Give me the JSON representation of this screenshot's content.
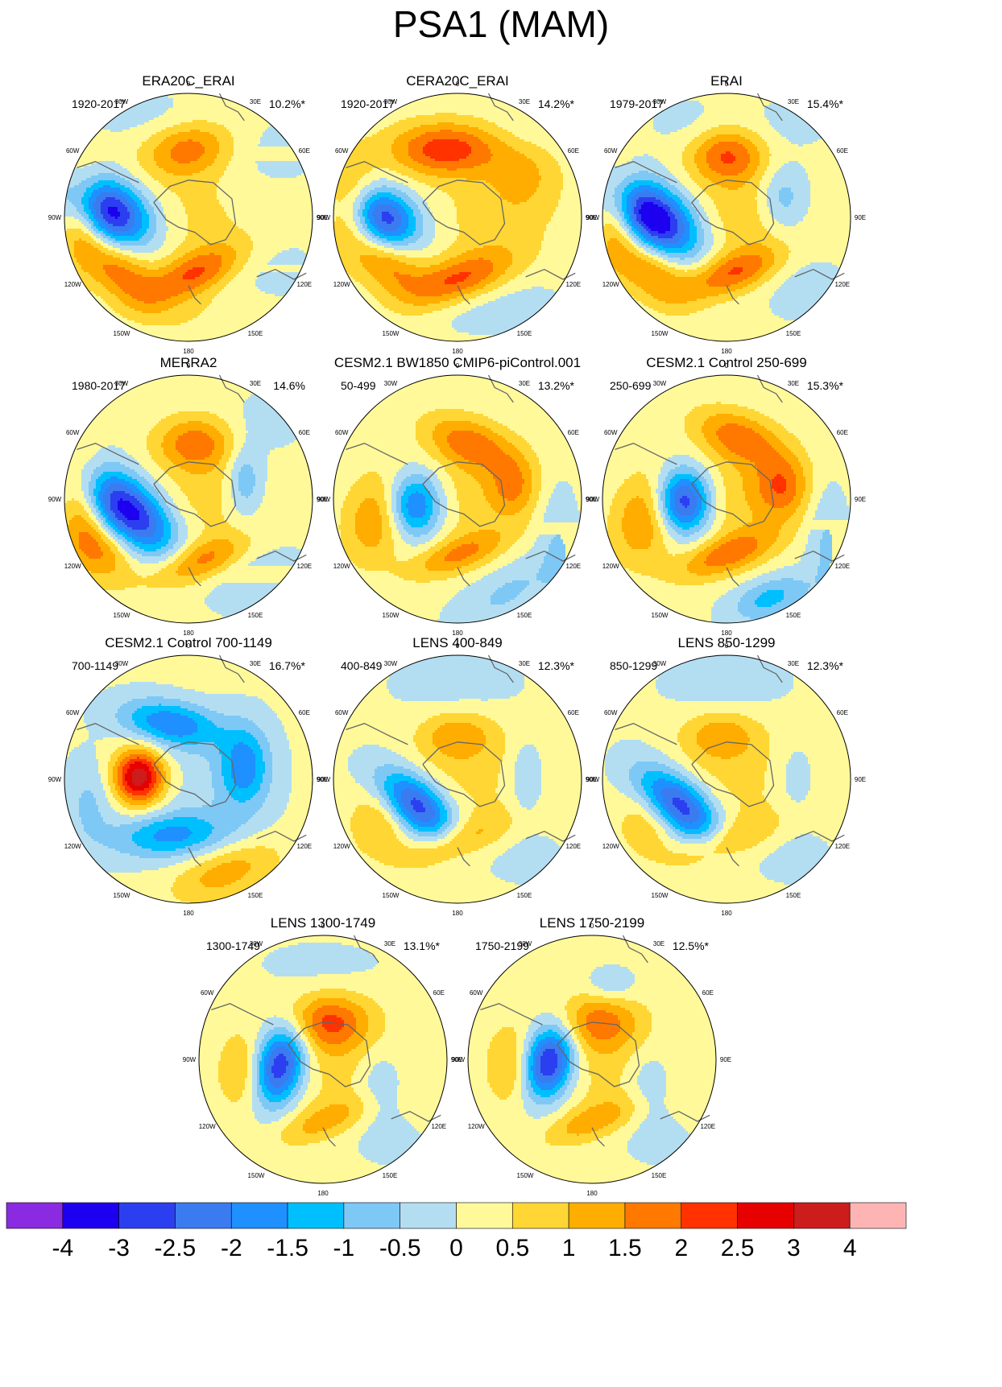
{
  "title": "PSA1 (MAM)",
  "palette": [
    "#8a2be2",
    "#1e00f0",
    "#2c3ff0",
    "#3a7bf0",
    "#1e90ff",
    "#00bfff",
    "#7ec8f5",
    "#b3def2",
    "#fff99a",
    "#ffd633",
    "#ffad00",
    "#ff7800",
    "#ff3200",
    "#e60000",
    "#cc1c1c",
    "#ffb4b4"
  ],
  "colorbar_labels": [
    "-4",
    "-3",
    "-2.5",
    "-2",
    "-1.5",
    "-1",
    "-0.5",
    "0",
    "0.5",
    "1",
    "1.5",
    "2",
    "2.5",
    "3",
    "4"
  ],
  "grid_labels": [
    "0",
    "30E",
    "60E",
    "90E",
    "120E",
    "150E",
    "180",
    "150W",
    "120W",
    "90W",
    "60W",
    "30W"
  ],
  "panels": [
    {
      "title": "ERA20C_ERAI",
      "period": "1920-2017",
      "pct": "10.2%*",
      "blobs": [
        [
          -0.65,
          0.05,
          0.36,
          0.24,
          -30,
          -3.6
        ],
        [
          0.05,
          -0.45,
          0.42,
          0.17,
          25,
          1.8
        ],
        [
          -0.55,
          -0.45,
          0.38,
          0.2,
          -40,
          1.6
        ],
        [
          -0.85,
          0.02,
          0.18,
          0.4,
          0,
          1.4
        ],
        [
          0.0,
          0.55,
          0.36,
          0.22,
          10,
          1.6
        ],
        [
          0.1,
          0.0,
          0.5,
          0.5,
          0,
          0.5
        ],
        [
          0.55,
          0.5,
          0.45,
          0.3,
          0,
          -0.3
        ],
        [
          0.6,
          -0.4,
          0.4,
          0.3,
          0,
          -0.3
        ],
        [
          -0.3,
          0.8,
          0.5,
          0.2,
          0,
          -0.3
        ],
        [
          0.1,
          -0.8,
          0.5,
          0.2,
          0,
          0.3
        ]
      ]
    },
    {
      "title": "CERA20C_ERAI",
      "period": "1920-2017",
      "pct": "14.2%*",
      "blobs": [
        [
          -0.6,
          0.0,
          0.3,
          0.22,
          -30,
          -3.0
        ],
        [
          0.0,
          -0.5,
          0.45,
          0.18,
          20,
          1.9
        ],
        [
          -0.1,
          0.55,
          0.45,
          0.22,
          0,
          2.2
        ],
        [
          -0.55,
          -0.4,
          0.3,
          0.2,
          -30,
          1.4
        ],
        [
          -0.85,
          0.1,
          0.2,
          0.4,
          0,
          1.3
        ],
        [
          0.1,
          -0.75,
          0.35,
          0.18,
          0,
          -0.3
        ],
        [
          0.55,
          0.35,
          0.3,
          0.3,
          0,
          0.8
        ],
        [
          0.3,
          0.0,
          0.5,
          0.4,
          0,
          0.6
        ],
        [
          0.55,
          -0.7,
          0.3,
          0.2,
          0,
          -0.3
        ],
        [
          0.6,
          0.7,
          0.3,
          0.2,
          0,
          -0.3
        ]
      ]
    },
    {
      "title": "ERAI",
      "period": "1979-2017",
      "pct": "15.4%*",
      "blobs": [
        [
          -0.6,
          0.0,
          0.4,
          0.24,
          -35,
          -3.9
        ],
        [
          0.05,
          -0.45,
          0.4,
          0.16,
          20,
          1.8
        ],
        [
          -0.6,
          -0.45,
          0.35,
          0.2,
          -40,
          1.5
        ],
        [
          -0.88,
          0.0,
          0.17,
          0.4,
          0,
          1.4
        ],
        [
          0.0,
          0.5,
          0.3,
          0.22,
          0,
          1.8
        ],
        [
          0.45,
          0.15,
          0.2,
          0.28,
          0,
          -1.2
        ],
        [
          0.2,
          0.0,
          0.45,
          0.45,
          0,
          0.8
        ],
        [
          0.55,
          -0.5,
          0.35,
          0.3,
          0,
          -0.4
        ],
        [
          0.5,
          0.75,
          0.35,
          0.2,
          0,
          -0.3
        ],
        [
          -0.3,
          0.75,
          0.3,
          0.2,
          0,
          -0.3
        ]
      ]
    },
    {
      "title": "MERRA2",
      "period": "1980-2017",
      "pct": "14.6%",
      "blobs": [
        [
          -0.5,
          -0.1,
          0.44,
          0.24,
          -40,
          -3.6
        ],
        [
          0.1,
          -0.5,
          0.4,
          0.16,
          20,
          1.7
        ],
        [
          -0.7,
          -0.4,
          0.3,
          0.25,
          -45,
          1.5
        ],
        [
          -0.85,
          0.0,
          0.18,
          0.4,
          0,
          1.3
        ],
        [
          0.05,
          0.45,
          0.32,
          0.22,
          0,
          1.6
        ],
        [
          0.45,
          0.15,
          0.14,
          0.28,
          0,
          -1.2
        ],
        [
          0.15,
          0.0,
          0.42,
          0.42,
          0,
          0.6
        ],
        [
          0.5,
          -0.6,
          0.4,
          0.3,
          0,
          -0.5
        ],
        [
          0.6,
          0.6,
          0.3,
          0.25,
          0,
          -0.3
        ]
      ]
    },
    {
      "title": "CESM2.1 BW1850 CMIP6-piControl.001",
      "period": "50-499",
      "pct": "13.2%*",
      "blobs": [
        [
          -0.35,
          -0.05,
          0.22,
          0.26,
          0,
          -2.5
        ],
        [
          0.0,
          -0.45,
          0.4,
          0.14,
          20,
          1.4
        ],
        [
          -0.65,
          -0.15,
          0.26,
          0.38,
          -15,
          1.4
        ],
        [
          0.1,
          0.45,
          0.38,
          0.2,
          -20,
          1.6
        ],
        [
          0.45,
          0.1,
          0.2,
          0.25,
          0,
          1.3
        ],
        [
          0.4,
          -0.75,
          0.45,
          0.2,
          30,
          -0.7
        ],
        [
          0.8,
          -0.35,
          0.15,
          0.45,
          0,
          -0.6
        ],
        [
          0.1,
          0.0,
          0.4,
          0.45,
          0,
          0.6
        ]
      ]
    },
    {
      "title": "CESM2.1 Control 250-699",
      "period": "250-699",
      "pct": "15.3%*",
      "blobs": [
        [
          -0.35,
          -0.02,
          0.22,
          0.26,
          0,
          -3.3
        ],
        [
          0.0,
          -0.45,
          0.42,
          0.15,
          20,
          1.6
        ],
        [
          -0.65,
          -0.15,
          0.26,
          0.38,
          -15,
          1.5
        ],
        [
          0.1,
          0.5,
          0.38,
          0.2,
          -20,
          1.6
        ],
        [
          0.45,
          0.1,
          0.22,
          0.25,
          0,
          1.6
        ],
        [
          0.35,
          -0.8,
          0.32,
          0.16,
          20,
          -1.3
        ],
        [
          0.8,
          -0.35,
          0.15,
          0.45,
          0,
          -0.7
        ],
        [
          0.1,
          0.0,
          0.4,
          0.45,
          0,
          0.7
        ]
      ]
    },
    {
      "title": "CESM2.1 Control 700-1149",
      "period": "700-1149",
      "pct": "16.7%*",
      "blobs": [
        [
          -0.4,
          0.02,
          0.2,
          0.22,
          0,
          3.3
        ],
        [
          -0.15,
          0.45,
          0.4,
          0.18,
          -10,
          -2.0
        ],
        [
          -0.15,
          -0.45,
          0.45,
          0.18,
          5,
          -1.7
        ],
        [
          0.45,
          0.1,
          0.2,
          0.32,
          0,
          -1.8
        ],
        [
          0.3,
          -0.75,
          0.45,
          0.2,
          20,
          1.2
        ],
        [
          -0.8,
          -0.2,
          0.2,
          0.35,
          0,
          -0.7
        ],
        [
          0.2,
          -0.05,
          0.5,
          0.55,
          0,
          -0.3
        ],
        [
          0.2,
          0.9,
          0.3,
          0.15,
          0,
          0.3
        ]
      ]
    },
    {
      "title": "LENS 400-849",
      "period": "400-849",
      "pct": "12.3%*",
      "blobs": [
        [
          -0.35,
          -0.2,
          0.36,
          0.2,
          -40,
          -3.3
        ],
        [
          0.0,
          -0.5,
          0.45,
          0.15,
          20,
          1.1
        ],
        [
          -0.6,
          -0.3,
          0.25,
          0.32,
          -20,
          1.1
        ],
        [
          0.0,
          0.35,
          0.3,
          0.2,
          0,
          1.1
        ],
        [
          0.55,
          0.0,
          0.12,
          0.28,
          0,
          -0.8
        ],
        [
          0.1,
          0.0,
          0.5,
          0.5,
          0,
          0.5
        ],
        [
          0.5,
          -0.6,
          0.35,
          0.25,
          0,
          -0.3
        ],
        [
          0.0,
          0.75,
          0.5,
          0.25,
          0,
          -0.4
        ]
      ]
    },
    {
      "title": "LENS 850-1299",
      "period": "850-1299",
      "pct": "12.3%*",
      "blobs": [
        [
          -0.4,
          -0.2,
          0.38,
          0.2,
          -40,
          -3.4
        ],
        [
          0.0,
          -0.5,
          0.45,
          0.15,
          20,
          1.0
        ],
        [
          -0.6,
          -0.3,
          0.25,
          0.32,
          -20,
          1.0
        ],
        [
          -0.05,
          0.35,
          0.3,
          0.2,
          0,
          1.1
        ],
        [
          0.55,
          0.0,
          0.15,
          0.3,
          0,
          -0.5
        ],
        [
          0.1,
          0.0,
          0.5,
          0.5,
          0,
          0.5
        ],
        [
          0.5,
          -0.6,
          0.35,
          0.25,
          0,
          -0.3
        ],
        [
          0.0,
          0.75,
          0.5,
          0.25,
          0,
          -0.4
        ]
      ]
    },
    {
      "title": "LENS 1300-1749",
      "period": "1300-1749",
      "pct": "13.1%*",
      "blobs": [
        [
          -0.35,
          -0.05,
          0.2,
          0.32,
          -15,
          -3.3
        ],
        [
          0.0,
          -0.5,
          0.4,
          0.14,
          20,
          1.0
        ],
        [
          -0.65,
          -0.1,
          0.2,
          0.32,
          0,
          1.0
        ],
        [
          0.05,
          0.3,
          0.32,
          0.22,
          0,
          1.7
        ],
        [
          0.1,
          0.0,
          0.5,
          0.5,
          0,
          0.6
        ],
        [
          0.45,
          -0.2,
          0.18,
          0.3,
          0,
          -0.7
        ],
        [
          0.5,
          -0.65,
          0.3,
          0.2,
          0,
          -0.3
        ],
        [
          0.0,
          0.75,
          0.5,
          0.2,
          0,
          -0.3
        ]
      ]
    },
    {
      "title": "LENS 1750-2199",
      "period": "1750-2199",
      "pct": "12.5%*",
      "blobs": [
        [
          -0.35,
          -0.02,
          0.2,
          0.3,
          -15,
          -3.5
        ],
        [
          0.0,
          -0.5,
          0.4,
          0.14,
          20,
          1.1
        ],
        [
          -0.65,
          -0.05,
          0.2,
          0.32,
          0,
          1.1
        ],
        [
          0.05,
          0.3,
          0.32,
          0.22,
          0,
          1.4
        ],
        [
          0.1,
          0.0,
          0.5,
          0.5,
          0,
          0.6
        ],
        [
          0.45,
          -0.2,
          0.18,
          0.3,
          0,
          -0.7
        ],
        [
          0.15,
          0.6,
          0.2,
          0.14,
          0,
          -0.7
        ],
        [
          0.5,
          -0.65,
          0.3,
          0.2,
          0,
          -0.3
        ]
      ]
    }
  ]
}
